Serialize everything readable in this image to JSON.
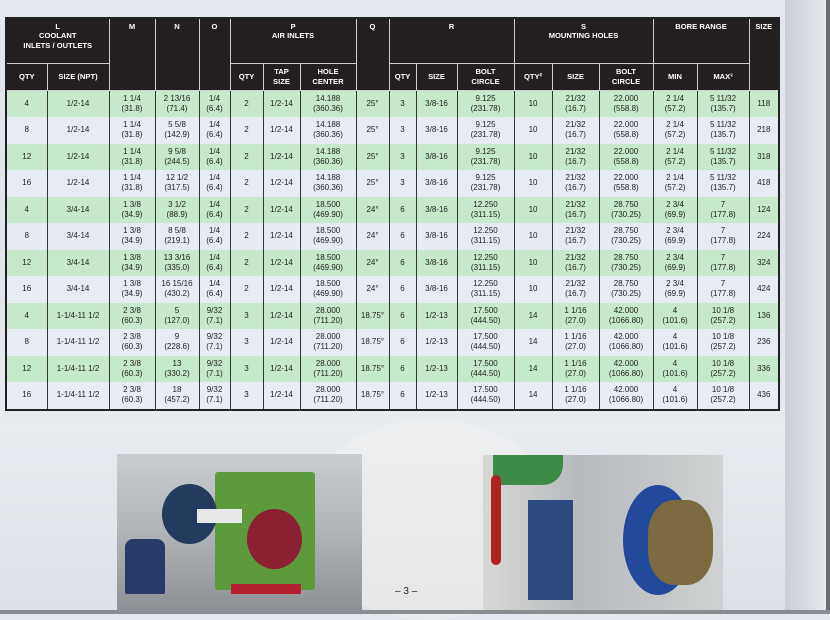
{
  "table": {
    "group_headers": {
      "L": "L\nCOOLANT\nINLETS / OUTLETS",
      "M": "M",
      "N": "N",
      "O": "O",
      "P": "P\nAIR INLETS",
      "Q": "Q",
      "R": "R",
      "S": "S\nMOUNTING HOLES",
      "bore": "BORE RANGE",
      "size": "SIZE"
    },
    "sub_headers": [
      "QTY",
      "SIZE (NPT)",
      "QTY",
      "TAP\nSIZE",
      "HOLE\nCENTER",
      "QTY",
      "SIZE",
      "BOLT\nCIRCLE",
      "QTY²",
      "SIZE",
      "BOLT\nCIRCLE",
      "MIN",
      "MAX³"
    ],
    "rows": [
      [
        "4",
        "1/2-14",
        "1 1/4\n(31.8)",
        "2 13/16\n(71.4)",
        "1/4\n(6.4)",
        "2",
        "1/2-14",
        "14.188\n(360.36)",
        "25°",
        "3",
        "3/8-16",
        "9.125\n(231.78)",
        "10",
        "21/32\n(16.7)",
        "22.000\n(558.8)",
        "2 1/4\n(57.2)",
        "5 11/32\n(135.7)",
        "118"
      ],
      [
        "8",
        "1/2-14",
        "1 1/4\n(31.8)",
        "5 5/8\n(142.9)",
        "1/4\n(6.4)",
        "2",
        "1/2-14",
        "14.188\n(360.36)",
        "25°",
        "3",
        "3/8-16",
        "9.125\n(231.78)",
        "10",
        "21/32\n(16.7)",
        "22.000\n(558.8)",
        "2 1/4\n(57.2)",
        "5 11/32\n(135.7)",
        "218"
      ],
      [
        "12",
        "1/2-14",
        "1 1/4\n(31.8)",
        "9 5/8\n(244.5)",
        "1/4\n(6.4)",
        "2",
        "1/2-14",
        "14.188\n(360.36)",
        "25°",
        "3",
        "3/8-16",
        "9.125\n(231.78)",
        "10",
        "21/32\n(16.7)",
        "22.000\n(558.8)",
        "2 1/4\n(57.2)",
        "5 11/32\n(135.7)",
        "318"
      ],
      [
        "16",
        "1/2-14",
        "1 1/4\n(31.8)",
        "12 1/2\n(317.5)",
        "1/4\n(6.4)",
        "2",
        "1/2-14",
        "14.188\n(360.36)",
        "25°",
        "3",
        "3/8-16",
        "9.125\n(231.78)",
        "10",
        "21/32\n(16.7)",
        "22.000\n(558.8)",
        "2 1/4\n(57.2)",
        "5 11/32\n(135.7)",
        "418"
      ],
      [
        "4",
        "3/4-14",
        "1 3/8\n(34.9)",
        "3 1/2\n(88.9)",
        "1/4\n(6.4)",
        "2",
        "1/2-14",
        "18.500\n(469.90)",
        "24°",
        "6",
        "3/8-16",
        "12.250\n(311.15)",
        "10",
        "21/32\n(16.7)",
        "28.750\n(730.25)",
        "2 3/4\n(69.9)",
        "7\n(177.8)",
        "124"
      ],
      [
        "8",
        "3/4-14",
        "1 3/8\n(34.9)",
        "8 5/8\n(219.1)",
        "1/4\n(6.4)",
        "2",
        "1/2-14",
        "18.500\n(469.90)",
        "24°",
        "6",
        "3/8-16",
        "12.250\n(311.15)",
        "10",
        "21/32\n(16.7)",
        "28.750\n(730.25)",
        "2 3/4\n(69.9)",
        "7\n(177.8)",
        "224"
      ],
      [
        "12",
        "3/4-14",
        "1 3/8\n(34.9)",
        "13 3/16\n(335.0)",
        "1/4\n(6.4)",
        "2",
        "1/2-14",
        "18.500\n(469.90)",
        "24°",
        "6",
        "3/8-16",
        "12.250\n(311.15)",
        "10",
        "21/32\n(16.7)",
        "28.750\n(730.25)",
        "2 3/4\n(69.9)",
        "7\n(177.8)",
        "324"
      ],
      [
        "16",
        "3/4-14",
        "1 3/8\n(34.9)",
        "16 15/16\n(430.2)",
        "1/4\n(6.4)",
        "2",
        "1/2-14",
        "18.500\n(469.90)",
        "24°",
        "6",
        "3/8-16",
        "12.250\n(311.15)",
        "10",
        "21/32\n(16.7)",
        "28.750\n(730.25)",
        "2 3/4\n(69.9)",
        "7\n(177.8)",
        "424"
      ],
      [
        "4",
        "1-1/4-11 1/2",
        "2 3/8\n(60.3)",
        "5\n(127.0)",
        "9/32\n(7.1)",
        "3",
        "1/2-14",
        "28.000\n(711.20)",
        "18.75°",
        "6",
        "1/2-13",
        "17.500\n(444.50)",
        "14",
        "1 1/16\n(27.0)",
        "42.000\n(1066.80)",
        "4\n(101.6)",
        "10 1/8\n(257.2)",
        "136"
      ],
      [
        "8",
        "1-1/4-11 1/2",
        "2 3/8\n(60.3)",
        "9\n(228.6)",
        "9/32\n(7.1)",
        "3",
        "1/2-14",
        "28.000\n(711.20)",
        "18.75°",
        "6",
        "1/2-13",
        "17.500\n(444.50)",
        "14",
        "1 1/16\n(27.0)",
        "42.000\n(1066.80)",
        "4\n(101.6)",
        "10 1/8\n(257.2)",
        "236"
      ],
      [
        "12",
        "1-1/4-11 1/2",
        "2 3/8\n(60.3)",
        "13\n(330.2)",
        "9/32\n(7.1)",
        "3",
        "1/2-14",
        "28.000\n(711.20)",
        "18.75°",
        "6",
        "1/2-13",
        "17.500\n(444.50)",
        "14",
        "1 1/16\n(27.0)",
        "42.000\n(1066.80)",
        "4\n(101.6)",
        "10 1/8\n(257.2)",
        "336"
      ],
      [
        "16",
        "1-1/4-11 1/2",
        "2 3/8\n(60.3)",
        "18\n(457.2)",
        "9/32\n(7.1)",
        "3",
        "1/2-14",
        "28.000\n(711.20)",
        "18.75°",
        "6",
        "1/2-13",
        "17.500\n(444.50)",
        "14",
        "1 1/16\n(27.0)",
        "42.000\n(1066.80)",
        "4\n(101.6)",
        "10 1/8\n(257.2)",
        "436"
      ]
    ],
    "colors": {
      "header_bg": "#231f20",
      "row_green": "#c4e8c8",
      "row_light": "#e8ecf4"
    }
  },
  "page_number": "– 3 –"
}
